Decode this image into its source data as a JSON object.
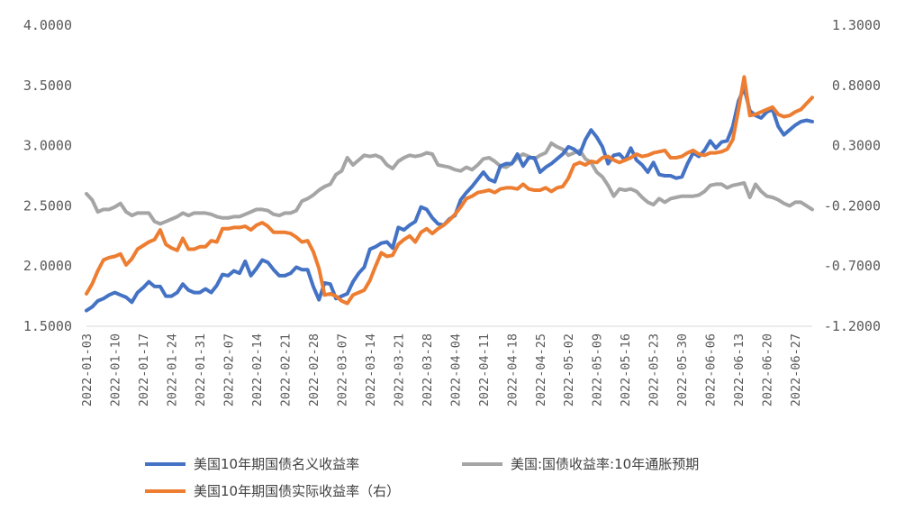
{
  "chart_data": {
    "type": "line",
    "title": "",
    "x": [
      "2022-01-03",
      "2022-01-04",
      "2022-01-05",
      "2022-01-06",
      "2022-01-07",
      "2022-01-10",
      "2022-01-11",
      "2022-01-12",
      "2022-01-13",
      "2022-01-14",
      "2022-01-17",
      "2022-01-18",
      "2022-01-19",
      "2022-01-20",
      "2022-01-21",
      "2022-01-24",
      "2022-01-25",
      "2022-01-26",
      "2022-01-27",
      "2022-01-28",
      "2022-01-31",
      "2022-02-01",
      "2022-02-02",
      "2022-02-03",
      "2022-02-04",
      "2022-02-07",
      "2022-02-08",
      "2022-02-09",
      "2022-02-10",
      "2022-02-11",
      "2022-02-14",
      "2022-02-15",
      "2022-02-16",
      "2022-02-17",
      "2022-02-18",
      "2022-02-21",
      "2022-02-22",
      "2022-02-23",
      "2022-02-24",
      "2022-02-25",
      "2022-02-28",
      "2022-03-01",
      "2022-03-02",
      "2022-03-03",
      "2022-03-04",
      "2022-03-07",
      "2022-03-08",
      "2022-03-09",
      "2022-03-10",
      "2022-03-11",
      "2022-03-14",
      "2022-03-15",
      "2022-03-16",
      "2022-03-17",
      "2022-03-18",
      "2022-03-21",
      "2022-03-22",
      "2022-03-23",
      "2022-03-24",
      "2022-03-25",
      "2022-03-28",
      "2022-03-29",
      "2022-03-30",
      "2022-03-31",
      "2022-04-01",
      "2022-04-04",
      "2022-04-05",
      "2022-04-06",
      "2022-04-07",
      "2022-04-08",
      "2022-04-11",
      "2022-04-12",
      "2022-04-13",
      "2022-04-14",
      "2022-04-15",
      "2022-04-18",
      "2022-04-19",
      "2022-04-20",
      "2022-04-21",
      "2022-04-22",
      "2022-04-25",
      "2022-04-26",
      "2022-04-27",
      "2022-04-28",
      "2022-04-29",
      "2022-05-02",
      "2022-05-03",
      "2022-05-04",
      "2022-05-05",
      "2022-05-06",
      "2022-05-09",
      "2022-05-10",
      "2022-05-11",
      "2022-05-12",
      "2022-05-13",
      "2022-05-16",
      "2022-05-17",
      "2022-05-18",
      "2022-05-19",
      "2022-05-20",
      "2022-05-23",
      "2022-05-24",
      "2022-05-25",
      "2022-05-26",
      "2022-05-27",
      "2022-05-30",
      "2022-05-31",
      "2022-06-01",
      "2022-06-02",
      "2022-06-03",
      "2022-06-06",
      "2022-06-07",
      "2022-06-08",
      "2022-06-09",
      "2022-06-10",
      "2022-06-13",
      "2022-06-14",
      "2022-06-15",
      "2022-06-16",
      "2022-06-17",
      "2022-06-20",
      "2022-06-21",
      "2022-06-22",
      "2022-06-23",
      "2022-06-24",
      "2022-06-27",
      "2022-06-28",
      "2022-06-29",
      "2022-06-30"
    ],
    "x_ticks": [
      "2022-01-03",
      "2022-01-10",
      "2022-01-17",
      "2022-01-24",
      "2022-01-31",
      "2022-02-07",
      "2022-02-14",
      "2022-02-21",
      "2022-02-28",
      "2022-03-07",
      "2022-03-14",
      "2022-03-21",
      "2022-03-28",
      "2022-04-04",
      "2022-04-11",
      "2022-04-18",
      "2022-04-25",
      "2022-05-02",
      "2022-05-09",
      "2022-05-16",
      "2022-05-23",
      "2022-05-30",
      "2022-06-06",
      "2022-06-13",
      "2022-06-20",
      "2022-06-27"
    ],
    "y_left": {
      "ticks": [
        "4.0000",
        "3.5000",
        "3.0000",
        "2.5000",
        "2.0000",
        "1.5000"
      ],
      "ylim": [
        1.5,
        4.0
      ]
    },
    "y_right": {
      "ticks": [
        "1.3000",
        "0.8000",
        "0.3000",
        "-0.2000",
        "-0.7000",
        "-1.2000"
      ],
      "ylim": [
        -1.2,
        1.3
      ]
    },
    "legend_position": "bottom",
    "grid": false,
    "series": [
      {
        "name": "美国10年期国债名义收益率",
        "axis": "left",
        "color": "#4472C4",
        "values": [
          1.63,
          1.66,
          1.71,
          1.73,
          1.76,
          1.78,
          1.76,
          1.74,
          1.7,
          1.78,
          1.82,
          1.87,
          1.83,
          1.83,
          1.75,
          1.75,
          1.78,
          1.85,
          1.8,
          1.78,
          1.78,
          1.81,
          1.78,
          1.84,
          1.93,
          1.92,
          1.96,
          1.94,
          2.04,
          1.92,
          1.98,
          2.05,
          2.03,
          1.97,
          1.92,
          1.92,
          1.94,
          1.99,
          1.97,
          1.97,
          1.83,
          1.72,
          1.86,
          1.85,
          1.73,
          1.75,
          1.77,
          1.87,
          1.94,
          1.99,
          2.14,
          2.16,
          2.19,
          2.2,
          2.15,
          2.32,
          2.3,
          2.34,
          2.37,
          2.49,
          2.47,
          2.4,
          2.35,
          2.34,
          2.39,
          2.42,
          2.55,
          2.61,
          2.66,
          2.72,
          2.78,
          2.72,
          2.7,
          2.83,
          2.85,
          2.85,
          2.93,
          2.83,
          2.9,
          2.9,
          2.78,
          2.82,
          2.85,
          2.89,
          2.93,
          2.99,
          2.97,
          2.93,
          3.05,
          3.13,
          3.07,
          2.99,
          2.85,
          2.92,
          2.93,
          2.88,
          2.98,
          2.88,
          2.84,
          2.78,
          2.86,
          2.76,
          2.75,
          2.75,
          2.73,
          2.74,
          2.85,
          2.94,
          2.91,
          2.96,
          3.04,
          2.98,
          3.03,
          3.04,
          3.16,
          3.37,
          3.48,
          3.29,
          3.25,
          3.23,
          3.28,
          3.3,
          3.16,
          3.09,
          3.13,
          3.17,
          3.2,
          3.21,
          3.2
        ]
      },
      {
        "name": "美国:国债收益率:10年通胀预期",
        "axis": "right",
        "color": "#A5A5A5",
        "values": [
          -0.1,
          -0.15,
          -0.25,
          -0.23,
          -0.23,
          -0.21,
          -0.18,
          -0.25,
          -0.28,
          -0.26,
          -0.26,
          -0.26,
          -0.33,
          -0.35,
          -0.33,
          -0.31,
          -0.29,
          -0.26,
          -0.28,
          -0.26,
          -0.26,
          -0.26,
          -0.27,
          -0.29,
          -0.3,
          -0.3,
          -0.29,
          -0.29,
          -0.27,
          -0.25,
          -0.23,
          -0.23,
          -0.24,
          -0.27,
          -0.28,
          -0.26,
          -0.26,
          -0.24,
          -0.16,
          -0.14,
          -0.11,
          -0.07,
          -0.04,
          -0.02,
          0.06,
          0.09,
          0.2,
          0.14,
          0.18,
          0.22,
          0.21,
          0.22,
          0.2,
          0.14,
          0.11,
          0.17,
          0.2,
          0.22,
          0.21,
          0.22,
          0.24,
          0.23,
          0.14,
          0.13,
          0.12,
          0.1,
          0.09,
          0.12,
          0.1,
          0.14,
          0.19,
          0.2,
          0.17,
          0.13,
          0.12,
          0.15,
          0.2,
          0.23,
          0.21,
          0.19,
          0.22,
          0.24,
          0.32,
          0.29,
          0.27,
          0.22,
          0.24,
          0.26,
          0.19,
          0.16,
          0.08,
          0.04,
          -0.03,
          -0.12,
          -0.06,
          -0.07,
          -0.06,
          -0.08,
          -0.13,
          -0.17,
          -0.19,
          -0.14,
          -0.17,
          -0.14,
          -0.13,
          -0.12,
          -0.12,
          -0.12,
          -0.11,
          -0.08,
          -0.03,
          -0.02,
          -0.02,
          -0.05,
          -0.03,
          -0.02,
          -0.01,
          -0.13,
          -0.02,
          -0.08,
          -0.12,
          -0.13,
          -0.15,
          -0.18,
          -0.2,
          -0.17,
          -0.17,
          -0.2,
          -0.23
        ]
      },
      {
        "name": "美国10年期国债实际收益率（右）",
        "axis": "right",
        "color": "#ED7D31",
        "values": [
          -0.93,
          -0.85,
          -0.74,
          -0.65,
          -0.63,
          -0.62,
          -0.6,
          -0.69,
          -0.64,
          -0.56,
          -0.53,
          -0.5,
          -0.48,
          -0.4,
          -0.52,
          -0.55,
          -0.57,
          -0.47,
          -0.56,
          -0.56,
          -0.54,
          -0.54,
          -0.49,
          -0.5,
          -0.39,
          -0.39,
          -0.38,
          -0.38,
          -0.37,
          -0.4,
          -0.36,
          -0.34,
          -0.37,
          -0.42,
          -0.42,
          -0.42,
          -0.43,
          -0.46,
          -0.5,
          -0.49,
          -0.58,
          -0.72,
          -0.94,
          -0.93,
          -0.95,
          -0.99,
          -1.01,
          -0.94,
          -0.92,
          -0.9,
          -0.82,
          -0.7,
          -0.59,
          -0.62,
          -0.61,
          -0.52,
          -0.48,
          -0.45,
          -0.5,
          -0.42,
          -0.39,
          -0.43,
          -0.39,
          -0.36,
          -0.32,
          -0.27,
          -0.21,
          -0.14,
          -0.12,
          -0.09,
          -0.08,
          -0.07,
          -0.09,
          -0.06,
          -0.05,
          -0.05,
          -0.06,
          -0.02,
          -0.06,
          -0.07,
          -0.07,
          -0.05,
          -0.08,
          -0.05,
          -0.04,
          0.03,
          0.14,
          0.16,
          0.14,
          0.17,
          0.16,
          0.2,
          0.21,
          0.18,
          0.16,
          0.18,
          0.2,
          0.23,
          0.21,
          0.22,
          0.24,
          0.25,
          0.26,
          0.2,
          0.2,
          0.21,
          0.24,
          0.26,
          0.23,
          0.22,
          0.24,
          0.24,
          0.25,
          0.27,
          0.35,
          0.6,
          0.87,
          0.55,
          0.56,
          0.58,
          0.6,
          0.62,
          0.56,
          0.54,
          0.55,
          0.58,
          0.6,
          0.65,
          0.7
        ]
      }
    ]
  }
}
